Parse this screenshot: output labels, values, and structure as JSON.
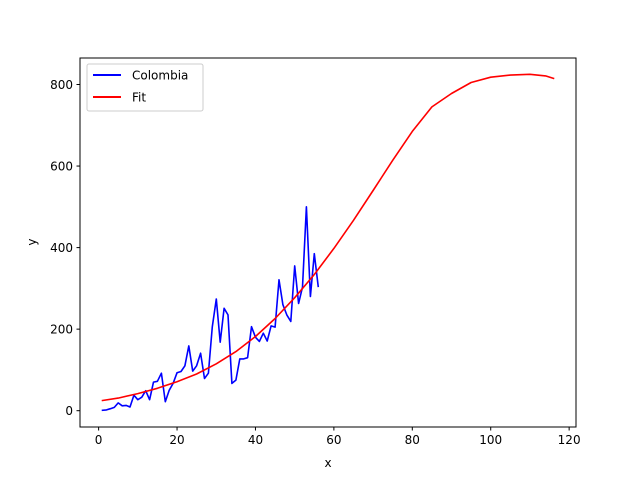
{
  "chart_data": {
    "type": "line",
    "title": "",
    "xlabel": "x",
    "ylabel": "y",
    "xlim": [
      -4.75,
      121.75
    ],
    "ylim": [
      -40,
      865
    ],
    "xticks": [
      0,
      20,
      40,
      60,
      80,
      100,
      120
    ],
    "yticks": [
      0,
      200,
      400,
      600,
      800
    ],
    "grid": false,
    "legend_position": "upper-left",
    "series": [
      {
        "name": "Colombia",
        "color": "#0000ff",
        "x": [
          1,
          2,
          3,
          4,
          5,
          6,
          7,
          8,
          9,
          10,
          11,
          12,
          13,
          14,
          15,
          16,
          17,
          18,
          19,
          20,
          21,
          22,
          23,
          24,
          25,
          26,
          27,
          28,
          29,
          30,
          31,
          32,
          33,
          34,
          35,
          36,
          37,
          38,
          39,
          40,
          41,
          42,
          43,
          44,
          45,
          46,
          47,
          48,
          49,
          50,
          51,
          52,
          53,
          54,
          55,
          56
        ],
        "y": [
          1,
          2,
          5,
          8,
          19,
          12,
          13,
          9,
          38,
          27,
          33,
          49,
          27,
          70,
          72,
          92,
          22,
          50,
          67,
          93,
          96,
          110,
          159,
          97,
          110,
          141,
          79,
          92,
          206,
          274,
          168,
          251,
          235,
          67,
          75,
          127,
          127,
          130,
          206,
          180,
          170,
          190,
          171,
          208,
          205,
          321,
          260,
          235,
          219,
          355,
          263,
          303,
          500,
          280,
          385,
          305
        ]
      },
      {
        "name": "Fit",
        "color": "#ff0000",
        "x": [
          1,
          5,
          10,
          15,
          20,
          25,
          30,
          35,
          40,
          45,
          50,
          55,
          60,
          65,
          70,
          75,
          80,
          85,
          90,
          95,
          100,
          105,
          110,
          114,
          116
        ],
        "y": [
          25,
          31,
          42,
          55,
          71,
          90,
          115,
          145,
          182,
          226,
          277,
          334,
          398,
          467,
          540,
          614,
          685,
          745,
          778,
          805,
          818,
          823,
          825,
          821,
          815
        ]
      }
    ]
  }
}
